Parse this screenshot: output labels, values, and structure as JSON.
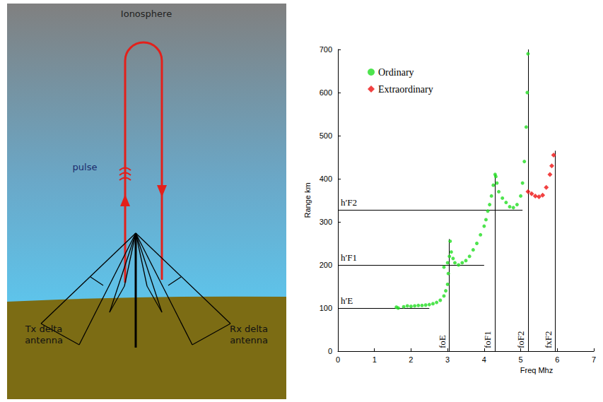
{
  "diagram": {
    "title": "Ionosphere",
    "pulse_label": "pulse",
    "tx_label": "Tx delta antenna",
    "rx_label": "Rx delta antenna"
  },
  "chart_data": {
    "type": "scatter",
    "x_label": "Freq Mhz",
    "y_label": "Range km",
    "xlim": [
      0,
      7
    ],
    "xticks": [
      0,
      1,
      2,
      3,
      4,
      5,
      6,
      7
    ],
    "ylim": [
      0,
      700
    ],
    "yticks": [
      0,
      100,
      200,
      300,
      400,
      500,
      600,
      700
    ],
    "grid": false,
    "legend": "upper left",
    "series": [
      {
        "name": "Ordinary",
        "color": "#22dd22",
        "marker": "circle",
        "x": [
          1.6,
          1.65,
          1.8,
          1.9,
          2.0,
          2.1,
          2.2,
          2.3,
          2.4,
          2.5,
          2.6,
          2.7,
          2.8,
          2.9,
          2.95,
          3.0,
          3.02,
          3.05,
          3.07,
          2.9,
          3.0,
          3.1,
          3.15,
          3.2,
          3.3,
          3.4,
          3.5,
          3.6,
          3.7,
          3.8,
          3.9,
          4.0,
          4.05,
          4.1,
          4.15,
          4.2,
          4.25,
          4.3,
          4.32,
          4.35,
          4.4,
          4.5,
          4.6,
          4.7,
          4.8,
          4.9,
          5.0,
          5.05,
          5.1,
          5.15,
          5.18,
          5.2
        ],
        "values": [
          102,
          100,
          103,
          105,
          104,
          105,
          106,
          106,
          107,
          108,
          110,
          113,
          118,
          128,
          140,
          155,
          180,
          220,
          255,
          195,
          205,
          230,
          215,
          205,
          200,
          205,
          210,
          220,
          235,
          250,
          270,
          290,
          305,
          325,
          340,
          360,
          385,
          410,
          405,
          390,
          370,
          355,
          345,
          335,
          333,
          340,
          360,
          390,
          440,
          520,
          600,
          690
        ]
      },
      {
        "name": "Extraordinary",
        "color": "#ee1111",
        "marker": "diamond",
        "x": [
          5.2,
          5.3,
          5.4,
          5.5,
          5.6,
          5.7,
          5.8,
          5.85,
          5.9
        ],
        "values": [
          370,
          365,
          360,
          358,
          362,
          380,
          410,
          430,
          455
        ]
      }
    ],
    "annotations": [
      {
        "label": "h′E",
        "x": [
          0,
          2.5
        ],
        "y": 100
      },
      {
        "label": "h′F1",
        "x": [
          0,
          4.0
        ],
        "y": 200
      },
      {
        "label": "h′F2",
        "x": [
          0,
          5.05
        ],
        "y": 328
      },
      {
        "label": "foE",
        "x": 3.05,
        "y": [
          0,
          260
        ]
      },
      {
        "label": "foF1",
        "x": 4.3,
        "y": [
          0,
          410
        ]
      },
      {
        "label": "foF2",
        "x": 5.2,
        "y": [
          0,
          700
        ]
      },
      {
        "label": "fxF2",
        "x": 5.95,
        "y": [
          0,
          465
        ]
      }
    ]
  }
}
